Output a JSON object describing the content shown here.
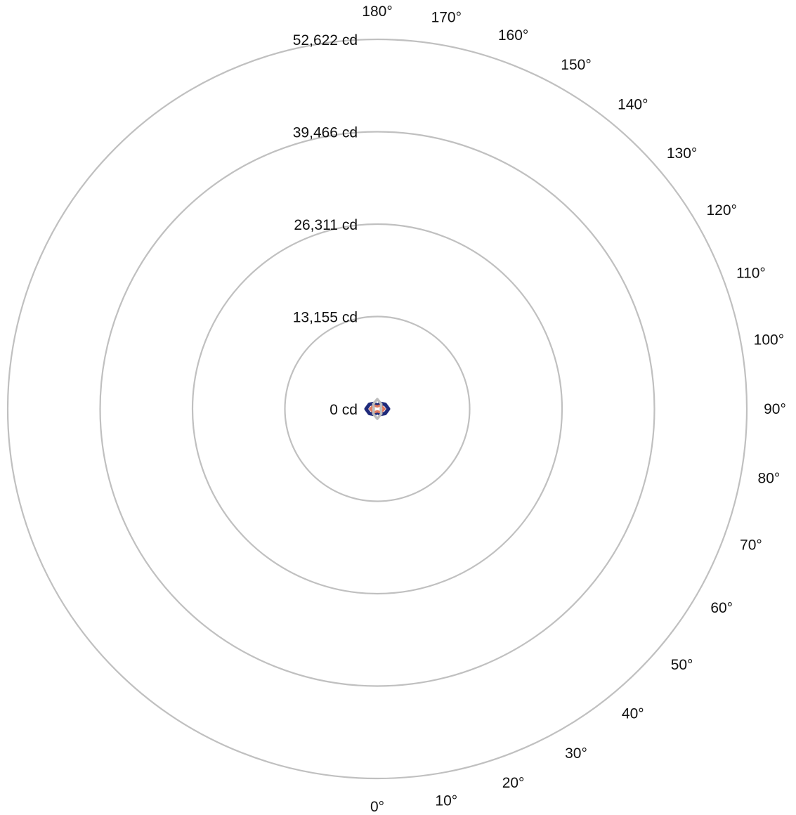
{
  "chart_data": {
    "type": "polar",
    "radial_unit": "cd",
    "radial_range": [
      0,
      52622
    ],
    "radial_ticks": [
      {
        "value": 0,
        "label": "0 cd"
      },
      {
        "value": 13155,
        "label": "13,155 cd"
      },
      {
        "value": 26311,
        "label": "26,311 cd"
      },
      {
        "value": 39466,
        "label": "39,466 cd"
      },
      {
        "value": 52622,
        "label": "52,622 cd"
      }
    ],
    "angle_ticks": [
      {
        "value": 0,
        "label": "0°"
      },
      {
        "value": 10,
        "label": "10°"
      },
      {
        "value": 20,
        "label": "20°"
      },
      {
        "value": 30,
        "label": "30°"
      },
      {
        "value": 40,
        "label": "40°"
      },
      {
        "value": 50,
        "label": "50°"
      },
      {
        "value": 60,
        "label": "60°"
      },
      {
        "value": 70,
        "label": "70°"
      },
      {
        "value": 80,
        "label": "80°"
      },
      {
        "value": 90,
        "label": "90°"
      },
      {
        "value": 100,
        "label": "100°"
      },
      {
        "value": 110,
        "label": "110°"
      },
      {
        "value": 120,
        "label": "120°"
      },
      {
        "value": 130,
        "label": "130°"
      },
      {
        "value": 140,
        "label": "140°"
      },
      {
        "value": 150,
        "label": "150°"
      },
      {
        "value": 160,
        "label": "160°"
      },
      {
        "value": 170,
        "label": "170°"
      },
      {
        "value": 180,
        "label": "180°"
      }
    ],
    "angle_zero": "bottom",
    "angle_direction": "counterclockwise",
    "grid": true,
    "grid_color": "#c0c0c0",
    "series": [
      {
        "color": "#1f2a7a",
        "points": [
          [
            0,
            500
          ],
          [
            30,
            900
          ],
          [
            60,
            1300
          ],
          [
            90,
            1600
          ],
          [
            120,
            1300
          ],
          [
            150,
            900
          ],
          [
            180,
            500
          ],
          [
            210,
            900
          ],
          [
            240,
            1300
          ],
          [
            270,
            1600
          ],
          [
            300,
            1300
          ],
          [
            330,
            900
          ]
        ]
      },
      {
        "color": "#e07a5f",
        "points": [
          [
            0,
            350
          ],
          [
            45,
            700
          ],
          [
            90,
            1000
          ],
          [
            135,
            700
          ],
          [
            180,
            350
          ],
          [
            225,
            700
          ],
          [
            270,
            1000
          ],
          [
            315,
            700
          ]
        ]
      },
      {
        "color": "#bdbdbd",
        "points": [
          [
            0,
            1400
          ],
          [
            40,
            900
          ],
          [
            90,
            500
          ],
          [
            140,
            900
          ],
          [
            180,
            1400
          ],
          [
            220,
            900
          ],
          [
            270,
            500
          ],
          [
            320,
            900
          ]
        ]
      }
    ]
  }
}
